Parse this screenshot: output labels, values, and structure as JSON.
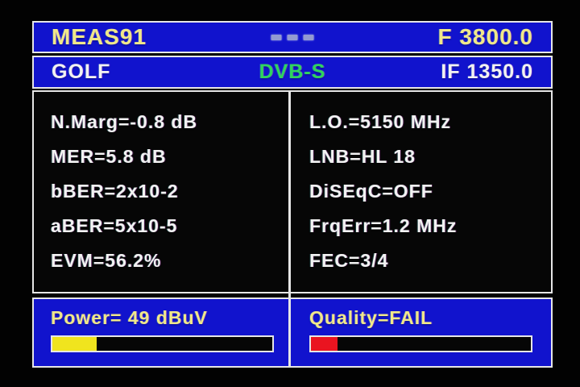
{
  "header": {
    "title": "MEAS91",
    "frequency": "F 3800.0",
    "indicator_icon": "signal-blocks-icon"
  },
  "subheader": {
    "name": "GOLF",
    "standard": "DVB-S",
    "if_frequency": "IF 1350.0"
  },
  "measurements_left": [
    "N.Marg=-0.8 dB",
    "MER=5.8 dB",
    "bBER=2x10-2",
    "aBER=5x10-5",
    "EVM=56.2%"
  ],
  "measurements_right": [
    "L.O.=5150 MHz",
    "LNB=HL 18",
    "DiSEqC=OFF",
    "FrqErr=1.2 MHz",
    "FEC=3/4"
  ],
  "power": {
    "label": "Power= 49 dBuV",
    "bar_percent": 20,
    "bar_color": "#f0e41e"
  },
  "quality": {
    "label": "Quality=FAIL",
    "bar_percent": 12,
    "bar_color": "#ea1420"
  },
  "colors": {
    "background_blue": "#1113cd",
    "standard_green": "#2fd45e",
    "header_yellow": "#f0e88a",
    "text_white": "#f2f2f2",
    "border_white": "#e6e6e6"
  }
}
